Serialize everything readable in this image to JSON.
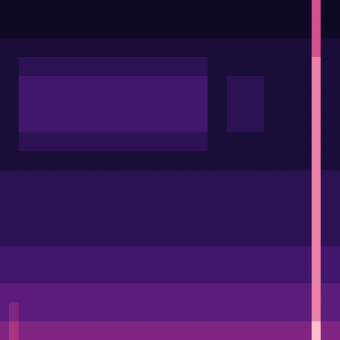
{
  "chart_data": {
    "type": "heatmap",
    "tick_labels": false,
    "grid": false,
    "zlim": [
      0,
      10
    ],
    "cells": [
      [
        1,
        1,
        1,
        1,
        1,
        1,
        1,
        1,
        1,
        1,
        1,
        1,
        1,
        1,
        1,
        1,
        1,
        1,
        1,
        1,
        1,
        1,
        1,
        1,
        1,
        1,
        1,
        1,
        1,
        1,
        1,
        1,
        1,
        8,
        1,
        1
      ],
      [
        1,
        1,
        1,
        1,
        1,
        1,
        1,
        1,
        1,
        1,
        1,
        1,
        1,
        1,
        1,
        1,
        1,
        1,
        1,
        1,
        1,
        1,
        1,
        1,
        1,
        1,
        1,
        1,
        1,
        1,
        1,
        1,
        1,
        8,
        1,
        1
      ],
      [
        2,
        2,
        2,
        2,
        2,
        2,
        2,
        2,
        2,
        2,
        2,
        2,
        2,
        2,
        2,
        2,
        2,
        2,
        2,
        2,
        2,
        2,
        2,
        2,
        2,
        2,
        2,
        2,
        2,
        2,
        2,
        2,
        2,
        8,
        2,
        2
      ],
      [
        2,
        2,
        3,
        3,
        3,
        3,
        3,
        3,
        3,
        3,
        3,
        3,
        3,
        3,
        3,
        3,
        3,
        3,
        3,
        3,
        3,
        3,
        2,
        2,
        2,
        2,
        2,
        2,
        2,
        2,
        2,
        2,
        2,
        9,
        2,
        2
      ],
      [
        2,
        2,
        4,
        4,
        4,
        4,
        4,
        4,
        4,
        4,
        4,
        4,
        4,
        4,
        4,
        4,
        4,
        4,
        4,
        4,
        4,
        4,
        2,
        2,
        3,
        3,
        3,
        3,
        2,
        2,
        2,
        2,
        2,
        9,
        2,
        2
      ],
      [
        2,
        2,
        4,
        4,
        4,
        4,
        4,
        4,
        4,
        4,
        4,
        4,
        4,
        4,
        4,
        4,
        4,
        4,
        4,
        4,
        4,
        4,
        2,
        2,
        3,
        3,
        3,
        3,
        2,
        2,
        2,
        2,
        2,
        9,
        2,
        2
      ],
      [
        2,
        2,
        4,
        4,
        4,
        4,
        4,
        4,
        4,
        4,
        4,
        4,
        4,
        4,
        4,
        4,
        4,
        4,
        4,
        4,
        4,
        4,
        2,
        2,
        3,
        3,
        3,
        3,
        2,
        2,
        2,
        2,
        2,
        9,
        2,
        2
      ],
      [
        2,
        2,
        3,
        3,
        3,
        3,
        3,
        3,
        3,
        3,
        3,
        3,
        3,
        3,
        3,
        3,
        3,
        3,
        3,
        3,
        3,
        3,
        2,
        2,
        2,
        2,
        2,
        2,
        2,
        2,
        2,
        2,
        2,
        9,
        2,
        2
      ],
      [
        2,
        2,
        2,
        2,
        2,
        2,
        2,
        2,
        2,
        2,
        2,
        2,
        2,
        2,
        2,
        2,
        2,
        2,
        2,
        2,
        2,
        2,
        2,
        2,
        2,
        2,
        2,
        2,
        2,
        2,
        2,
        2,
        2,
        9,
        2,
        2
      ],
      [
        3,
        3,
        3,
        3,
        3,
        3,
        3,
        3,
        3,
        3,
        3,
        3,
        3,
        3,
        3,
        3,
        3,
        3,
        3,
        3,
        3,
        3,
        3,
        3,
        3,
        3,
        3,
        3,
        3,
        3,
        3,
        3,
        3,
        9,
        3,
        3
      ],
      [
        3,
        3,
        3,
        3,
        3,
        3,
        3,
        3,
        3,
        3,
        3,
        3,
        3,
        3,
        3,
        3,
        3,
        3,
        3,
        3,
        3,
        3,
        3,
        3,
        3,
        3,
        3,
        3,
        3,
        3,
        3,
        3,
        3,
        9,
        3,
        3
      ],
      [
        3,
        3,
        3,
        3,
        3,
        3,
        3,
        3,
        3,
        3,
        3,
        3,
        3,
        3,
        3,
        3,
        3,
        3,
        3,
        3,
        3,
        3,
        3,
        3,
        3,
        3,
        3,
        3,
        3,
        3,
        3,
        3,
        3,
        9,
        3,
        3
      ],
      [
        3,
        3,
        3,
        3,
        3,
        3,
        3,
        3,
        3,
        3,
        3,
        3,
        3,
        3,
        3,
        3,
        3,
        3,
        3,
        3,
        3,
        3,
        3,
        3,
        3,
        3,
        3,
        3,
        3,
        3,
        3,
        3,
        3,
        9,
        3,
        3
      ],
      [
        4,
        4,
        4,
        4,
        4,
        4,
        4,
        4,
        4,
        4,
        4,
        4,
        4,
        4,
        4,
        4,
        4,
        4,
        4,
        4,
        4,
        4,
        4,
        4,
        4,
        4,
        4,
        4,
        4,
        4,
        4,
        4,
        4,
        9,
        4,
        4
      ],
      [
        4,
        4,
        4,
        4,
        4,
        4,
        4,
        4,
        4,
        4,
        4,
        4,
        4,
        4,
        4,
        4,
        4,
        4,
        4,
        4,
        4,
        4,
        4,
        4,
        4,
        4,
        4,
        4,
        4,
        4,
        4,
        4,
        4,
        9,
        4,
        4
      ],
      [
        5,
        5,
        5,
        5,
        5,
        5,
        5,
        5,
        5,
        5,
        5,
        5,
        5,
        5,
        5,
        5,
        5,
        5,
        5,
        5,
        5,
        5,
        5,
        5,
        5,
        5,
        5,
        5,
        5,
        5,
        5,
        5,
        5,
        9,
        5,
        5
      ],
      [
        5,
        6,
        5,
        5,
        5,
        5,
        5,
        5,
        5,
        5,
        5,
        5,
        5,
        5,
        5,
        5,
        5,
        5,
        5,
        5,
        5,
        5,
        5,
        5,
        5,
        5,
        5,
        5,
        5,
        5,
        5,
        5,
        5,
        9,
        5,
        5
      ],
      [
        6,
        7,
        6,
        6,
        6,
        6,
        6,
        6,
        6,
        6,
        6,
        6,
        6,
        6,
        6,
        6,
        6,
        6,
        6,
        6,
        6,
        6,
        6,
        6,
        6,
        6,
        6,
        6,
        6,
        6,
        6,
        6,
        6,
        10,
        6,
        6
      ]
    ]
  }
}
